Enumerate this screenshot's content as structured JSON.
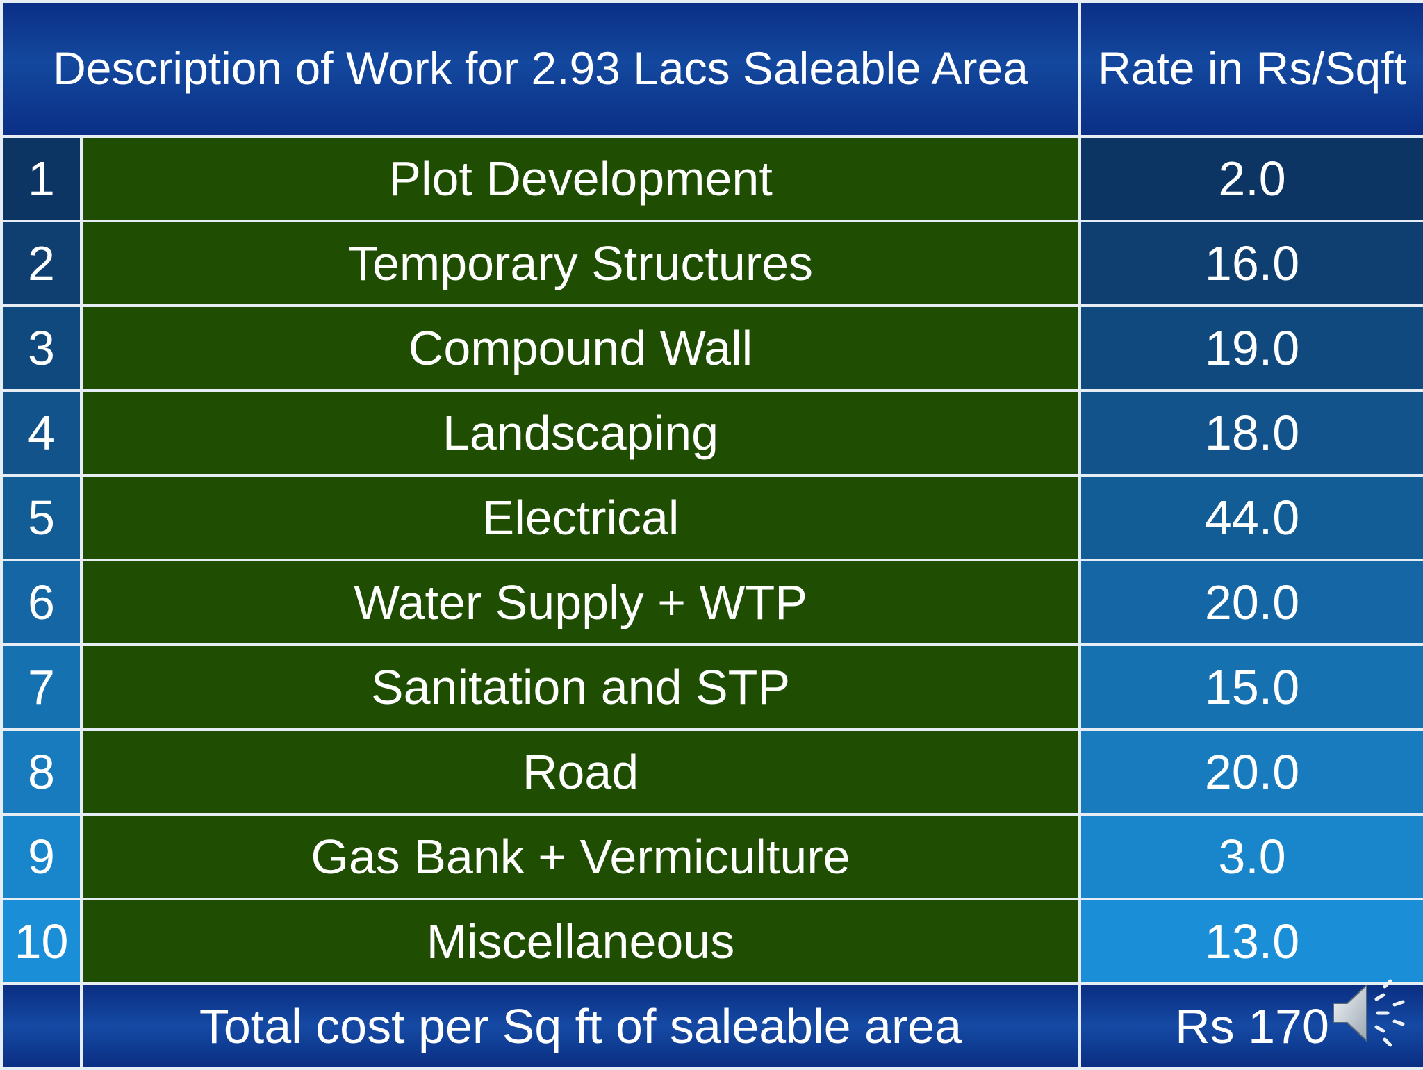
{
  "header": {
    "description": "Description of  Work for 2.93 Lacs Saleable Area",
    "rate": "Rate in Rs/Sqft"
  },
  "rows": [
    {
      "no": "1",
      "description": "Plot Development",
      "rate": "2.0"
    },
    {
      "no": "2",
      "description": "Temporary Structures",
      "rate": "16.0"
    },
    {
      "no": "3",
      "description": "Compound Wall",
      "rate": "19.0"
    },
    {
      "no": "4",
      "description": "Landscaping",
      "rate": "18.0"
    },
    {
      "no": "5",
      "description": "Electrical",
      "rate": "44.0"
    },
    {
      "no": "6",
      "description": "Water Supply + WTP",
      "rate": "20.0"
    },
    {
      "no": "7",
      "description": "Sanitation and STP",
      "rate": "15.0"
    },
    {
      "no": "8",
      "description": "Road",
      "rate": "20.0"
    },
    {
      "no": "9",
      "description": "Gas Bank + Vermiculture",
      "rate": "3.0"
    },
    {
      "no": "10",
      "description": "Miscellaneous",
      "rate": "13.0"
    }
  ],
  "total": {
    "label": "Total cost per Sq ft of saleable area",
    "value": "Rs 170"
  },
  "colors": {
    "description_cell": "#1f4d02",
    "header": "#0b2f86",
    "rows_gradient": [
      "#0d3563",
      "#1a8fd8"
    ],
    "border": "#e6edf5"
  },
  "icons": {
    "audio": "speaker-icon"
  }
}
